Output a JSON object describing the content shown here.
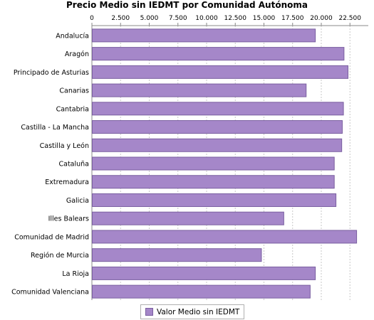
{
  "chart_data": {
    "type": "bar",
    "orientation": "horizontal",
    "title": "Precio Medio sin IEDMT por Comunidad Autónoma",
    "categories": [
      "Andalucía",
      "Aragón",
      "Principado de Asturias",
      "Canarias",
      "Cantabria",
      "Castilla - La Mancha",
      "Castilla y León",
      "Cataluña",
      "Extremadura",
      "Galicia",
      "Illes Balears",
      "Comunidad de Madrid",
      "Región de Murcia",
      "La Rioja",
      "Comunidad Valenciana"
    ],
    "series": [
      {
        "name": "Valor Medio sin IEDMT",
        "color": "#a587c9",
        "values": [
          19450,
          21950,
          22300,
          18650,
          21900,
          21800,
          21750,
          21100,
          21100,
          21250,
          16700,
          23050,
          14750,
          19450,
          19000
        ]
      }
    ],
    "x_ticks": [
      "0",
      "2.500",
      "5.000",
      "7.500",
      "10.000",
      "12.500",
      "15.000",
      "17.500",
      "20.000",
      "22.500"
    ],
    "x_tick_values": [
      0,
      2500,
      5000,
      7500,
      10000,
      12500,
      15000,
      17500,
      20000,
      22500
    ],
    "xlim": [
      0,
      24100
    ],
    "axis_position": "top",
    "grid": true,
    "legend": {
      "position": "bottom-center",
      "label": "Valor Medio sin IEDMT"
    }
  }
}
